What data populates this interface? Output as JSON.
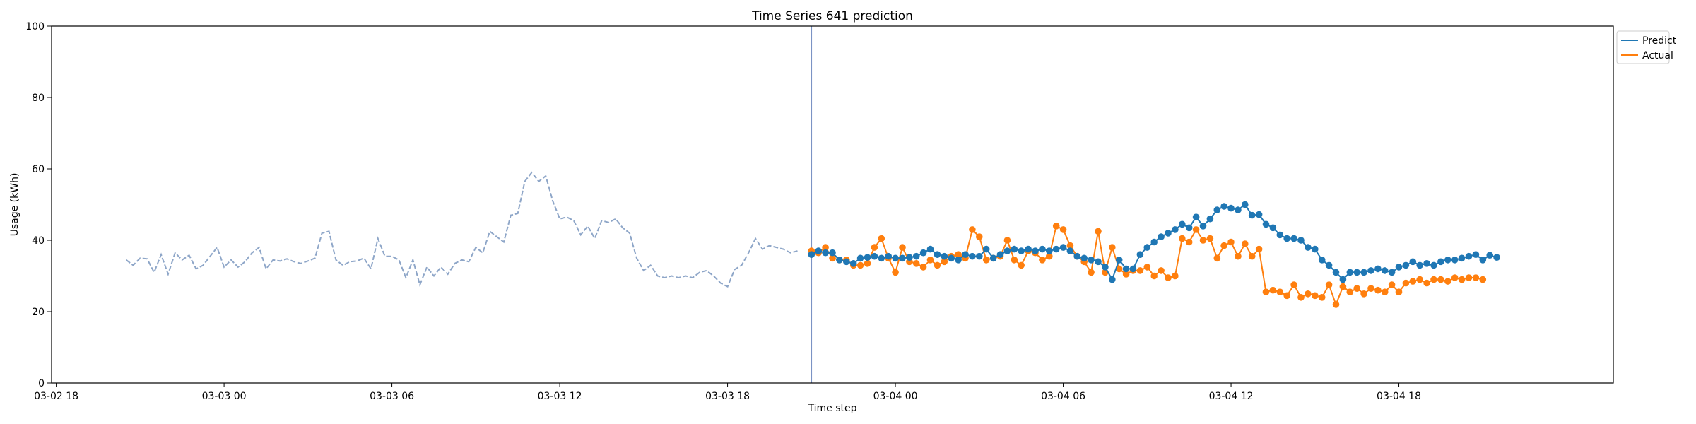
{
  "chart_data": {
    "type": "line",
    "title": "Time Series 641 prediction",
    "xlabel": "Time step",
    "ylabel": "Usage (kWh)",
    "ylim": [
      0,
      100
    ],
    "yticks": [
      0,
      20,
      40,
      60,
      80,
      100
    ],
    "x_axis_range": [
      "03-02 17:50",
      "03-05 01:40"
    ],
    "xticks": [
      "03-02 18",
      "03-03 00",
      "03-03 06",
      "03-03 12",
      "03-03 18",
      "03-04 00",
      "03-04 06",
      "03-04 12",
      "03-04 18"
    ],
    "xtick_times": [
      "03-02 18:00",
      "03-03 00:00",
      "03-03 06:00",
      "03-03 12:00",
      "03-03 18:00",
      "03-04 00:00",
      "03-04 06:00",
      "03-04 12:00",
      "03-04 18:00"
    ],
    "grid": false,
    "legend_placement": "outside-top-right",
    "forecast_start": "03-03 21:00",
    "history": {
      "start": "03-02 20:30",
      "step_minutes": 15,
      "color": "#8ea6c8",
      "style": "dashed",
      "values": [
        34.5,
        33,
        35,
        34.8,
        31,
        36,
        30.5,
        36.5,
        34.5,
        35.8,
        32,
        33,
        35.5,
        38,
        32.5,
        34.5,
        32.5,
        34,
        36.5,
        38,
        32,
        34.5,
        34.2,
        34.8,
        34,
        33.5,
        34.2,
        35,
        42,
        42.5,
        34.5,
        33,
        34,
        34.2,
        35,
        32,
        40.5,
        35.5,
        35.5,
        34.5,
        29.5,
        34.5,
        27.5,
        32.5,
        30,
        32.5,
        30.5,
        33.5,
        34.5,
        34,
        38,
        36.5,
        42.5,
        41,
        39.5,
        47,
        47.5,
        56.5,
        59,
        56.5,
        58,
        51,
        46,
        46.5,
        45.5,
        41.5,
        44,
        40.5,
        45.5,
        45,
        46,
        43.5,
        42,
        35,
        31.5,
        33,
        30,
        29.5,
        30,
        29.5,
        30,
        29.5,
        31,
        31.5,
        30,
        28,
        27,
        31.8,
        33,
        36.5,
        40.5,
        37.5,
        38.5,
        38,
        37.5,
        36.5,
        37
      ]
    },
    "series": [
      {
        "name": "Predict",
        "color": "#1f77b4",
        "start": "03-03 21:00",
        "step_minutes": 15,
        "values": [
          36,
          37,
          36.5,
          36.5,
          34.5,
          34,
          33.5,
          35,
          35.2,
          35.5,
          35,
          35.5,
          35,
          35,
          35.2,
          35.5,
          36.5,
          37.5,
          36,
          35.5,
          35,
          34.5,
          36,
          35.5,
          35.5,
          37.5,
          35,
          36,
          37,
          37.5,
          37,
          37.5,
          37,
          37.5,
          37,
          37.5,
          38,
          37,
          35.5,
          35,
          34.5,
          34,
          32.5,
          29,
          34.5,
          32,
          32,
          36,
          38,
          39.5,
          41,
          42,
          43,
          44.5,
          43.5,
          46.5,
          44,
          46,
          48.5,
          49.5,
          49,
          48.5,
          50,
          47,
          47.2,
          44.5,
          43.5,
          41.5,
          40.5,
          40.5,
          40,
          38,
          37.5,
          34.5,
          33,
          31,
          29,
          31,
          31,
          31,
          31.5,
          32,
          31.5,
          31,
          32.5,
          33,
          34,
          33,
          33.5,
          33,
          34,
          34.5,
          34.5,
          35,
          35.5,
          36,
          34.5,
          35.8,
          35.2
        ]
      },
      {
        "name": "Actual",
        "color": "#ff7f0e",
        "start": "03-03 21:00",
        "step_minutes": 15,
        "values": [
          37,
          36.5,
          38,
          35,
          34.5,
          34.5,
          33,
          33,
          33.5,
          38,
          40.5,
          35,
          31,
          38,
          34,
          33.5,
          32.5,
          34.5,
          33,
          34,
          35.5,
          36,
          35,
          43,
          41,
          34.5,
          35,
          35.5,
          40,
          34.5,
          33,
          37,
          36.5,
          34.5,
          35.5,
          44,
          43,
          38.5,
          35.5,
          34,
          31,
          42.5,
          31,
          38,
          32,
          30.5,
          31.5,
          31.5,
          32.5,
          30,
          31.5,
          29.5,
          30,
          40.5,
          39.5,
          43,
          40,
          40.5,
          35,
          38.5,
          39.5,
          35.5,
          39,
          35.5,
          37.5,
          25.5,
          26,
          25.5,
          24.5,
          27.5,
          24,
          25,
          24.5,
          24,
          27.5,
          22,
          27,
          25.5,
          26.5,
          25,
          26.5,
          26,
          25.5,
          27.5,
          25.5,
          28,
          28.5,
          29,
          28,
          29,
          29,
          28.5,
          29.5,
          29,
          29.5,
          29.5,
          29
        ]
      }
    ]
  }
}
